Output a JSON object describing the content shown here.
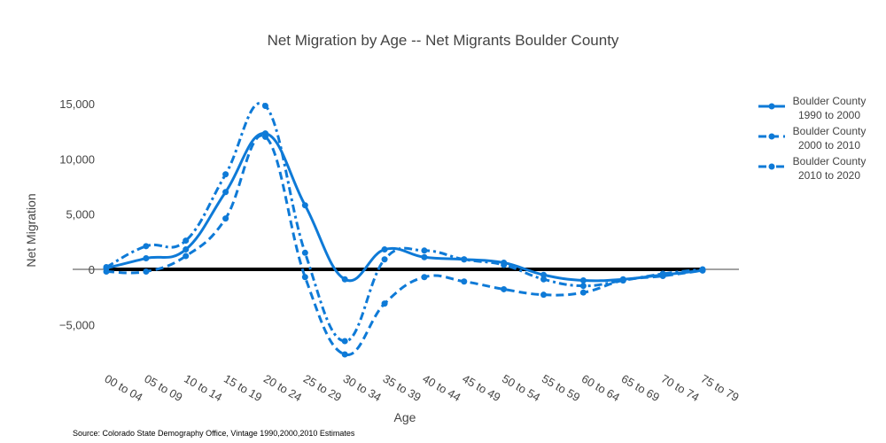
{
  "chart_data": {
    "type": "line",
    "title": "Net Migration by Age -- Net Migrants Boulder County",
    "xlabel": "Age",
    "ylabel": "Net Migration",
    "source": "Source: Colorado State Demography Office, Vintage 1990,2000,2010 Estimates",
    "categories": [
      "00 to 04",
      "05 to 09",
      "10 to 14",
      "15 to 19",
      "20 to 24",
      "25 to 29",
      "30 to 34",
      "35 to 39",
      "40 to 44",
      "45 to 49",
      "50 to 54",
      "55 to 59",
      "60 to 64",
      "65 to 69",
      "70 to 74",
      "75 to 79"
    ],
    "yticks": [
      -5000,
      0,
      5000,
      10000,
      15000
    ],
    "ytick_labels": [
      "−5,000",
      "0",
      "5,000",
      "10,000",
      "15,000"
    ],
    "ylim": [
      -9000,
      17500
    ],
    "grid": false,
    "legend_position": "right",
    "zero_line_color": "#000000",
    "series": [
      {
        "name": "Boulder County 1990 to 2000",
        "name_lines": [
          "Boulder County",
          "1990 to 2000"
        ],
        "dash": "solid",
        "color": "#0e7ad7",
        "values": [
          100,
          1000,
          1800,
          7000,
          12300,
          5800,
          -900,
          1800,
          1100,
          900,
          600,
          -500,
          -1000,
          -900,
          -500,
          -100
        ]
      },
      {
        "name": "Boulder County 2000 to 2010",
        "name_lines": [
          "Boulder County",
          "2000 to 2010"
        ],
        "dash": "dash",
        "color": "#0e7ad7",
        "values": [
          -200,
          -200,
          1200,
          4600,
          12000,
          -700,
          -7700,
          -3100,
          -700,
          -1100,
          -1800,
          -2300,
          -2100,
          -1000,
          -600,
          -100
        ]
      },
      {
        "name": "Boulder County 2010 to 2020",
        "name_lines": [
          "Boulder County",
          "2010 to 2020"
        ],
        "dash": "dashdot",
        "color": "#0e7ad7",
        "values": [
          200,
          2100,
          2600,
          8600,
          14800,
          1500,
          -6500,
          900,
          1700,
          900,
          400,
          -900,
          -1500,
          -1000,
          -400,
          0
        ]
      }
    ]
  }
}
